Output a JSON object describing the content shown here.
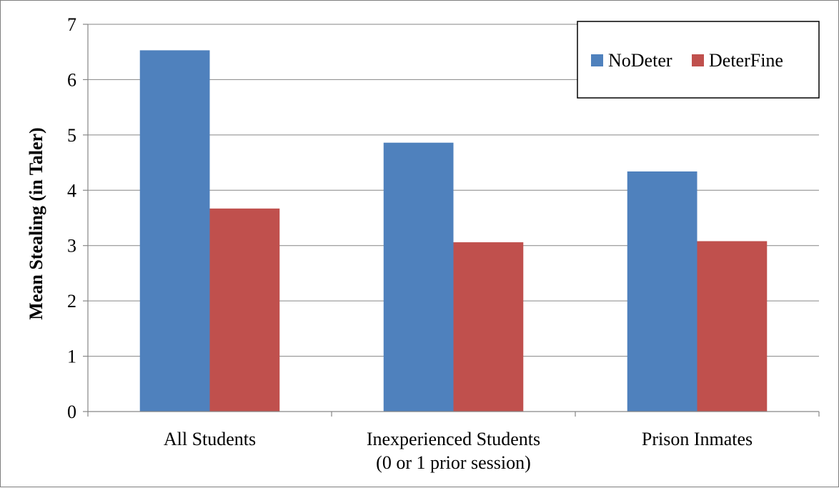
{
  "chart_data": {
    "type": "bar",
    "categories": [
      [
        "All Students"
      ],
      [
        "Inexperienced Students",
        "(0 or 1 prior session)"
      ],
      [
        "Prison Inmates"
      ]
    ],
    "series": [
      {
        "name": "NoDeter",
        "color": "#4f81bd",
        "values": [
          6.53,
          4.86,
          4.34
        ]
      },
      {
        "name": "DeterFine",
        "color": "#c0504d",
        "values": [
          3.67,
          3.06,
          3.08
        ]
      }
    ],
    "ylabel": "Mean Stealing (in Taler)",
    "xlabel": "",
    "title": "",
    "ylim": [
      0,
      7
    ],
    "yticks": [
      "0",
      "1",
      "2",
      "3",
      "4",
      "5",
      "6",
      "7"
    ],
    "grid": true,
    "legend_position": "top-right"
  }
}
